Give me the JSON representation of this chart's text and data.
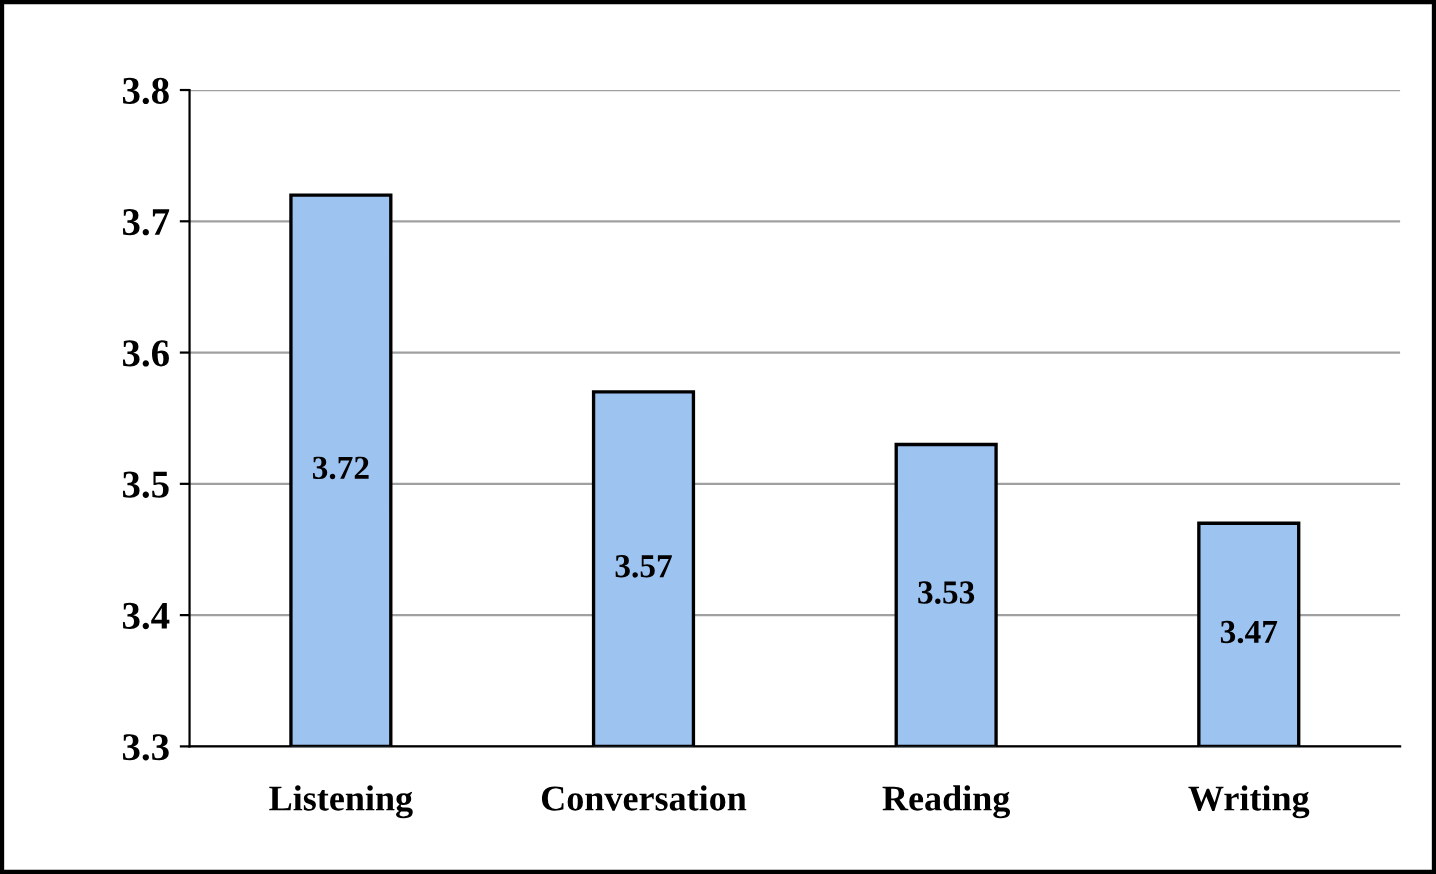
{
  "chart_data": {
    "type": "bar",
    "categories": [
      "Listening",
      "Conversation",
      "Reading",
      "Writing"
    ],
    "values": [
      3.72,
      3.57,
      3.53,
      3.47
    ],
    "color": "#9dc3f0",
    "ylim": [
      3.3,
      3.8
    ],
    "yticks": [
      3.3,
      3.4,
      3.5,
      3.6,
      3.7,
      3.8
    ],
    "grid": "y",
    "data_labels": true
  }
}
